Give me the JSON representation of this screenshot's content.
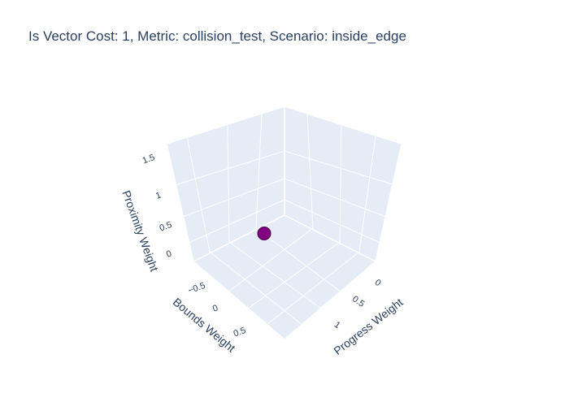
{
  "chart_data": {
    "type": "scatter3d",
    "title": "Is Vector Cost: 1, Metric: collision_test, Scenario: inside_edge",
    "xlabel": "Progress Weight",
    "ylabel": "Bounds Weight",
    "zlabel": "Proximity Weight",
    "x_ticks": [
      "0",
      "0.5",
      "1"
    ],
    "y_ticks": [
      "−0.5",
      "0",
      "0.5"
    ],
    "z_ticks": [
      "0",
      "0.5",
      "1",
      "1.5"
    ],
    "points": [
      {
        "x": 0.5,
        "y": 0,
        "z": 0.5
      }
    ],
    "marker_color": "#800080",
    "marker_outline": "#4b004b",
    "scene_background": "#e5ecf6",
    "grid": true
  }
}
